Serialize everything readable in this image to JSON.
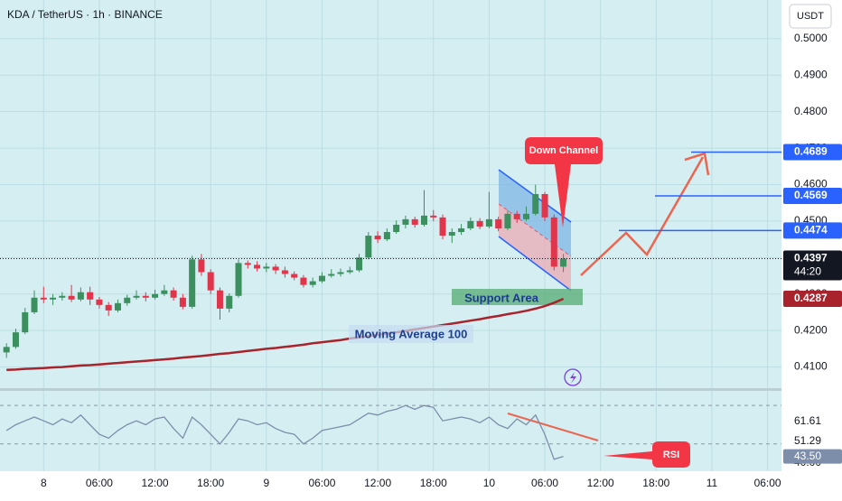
{
  "chart_data": {
    "type": "candlestick",
    "title": "KDA / TetherUS · 1h · BINANCE",
    "currency": "USDT",
    "countdown": "44:20",
    "up_color": "#3c8f5f",
    "down_color": "#e0354a",
    "grid": true,
    "x": [
      0,
      1,
      2,
      3,
      4,
      5,
      6,
      7,
      8,
      9,
      10,
      11,
      12,
      13,
      14,
      15,
      16,
      17,
      18,
      19,
      20,
      21,
      22,
      23,
      24,
      25,
      26,
      27,
      28,
      29,
      30,
      31,
      32,
      33,
      34,
      35,
      36,
      37,
      38,
      39,
      40,
      41,
      42,
      43,
      44,
      45,
      46,
      47,
      48,
      49,
      50,
      51,
      52,
      53,
      54,
      55,
      56,
      57,
      58,
      59,
      60
    ],
    "open": [
      0.414,
      0.4155,
      0.4195,
      0.425,
      0.429,
      0.4285,
      0.429,
      0.4295,
      0.4285,
      0.4305,
      0.4285,
      0.427,
      0.4255,
      0.4275,
      0.429,
      0.4295,
      0.429,
      0.43,
      0.431,
      0.429,
      0.4265,
      0.4395,
      0.436,
      0.431,
      0.426,
      0.4295,
      0.4385,
      0.438,
      0.437,
      0.4375,
      0.4365,
      0.4355,
      0.4345,
      0.4325,
      0.4335,
      0.435,
      0.4355,
      0.436,
      0.4365,
      0.44,
      0.446,
      0.445,
      0.447,
      0.449,
      0.4505,
      0.449,
      0.4515,
      0.451,
      0.446,
      0.447,
      0.448,
      0.45,
      0.4485,
      0.4505,
      0.448,
      0.452,
      0.4505,
      0.452,
      0.4574,
      0.451,
      0.4375
    ],
    "high": [
      0.4165,
      0.4205,
      0.4262,
      0.431,
      0.432,
      0.43,
      0.4305,
      0.4325,
      0.4318,
      0.432,
      0.4292,
      0.4278,
      0.4285,
      0.4298,
      0.431,
      0.4305,
      0.4312,
      0.4325,
      0.4318,
      0.43,
      0.4405,
      0.441,
      0.4368,
      0.4318,
      0.4302,
      0.4395,
      0.4392,
      0.439,
      0.4385,
      0.4382,
      0.4375,
      0.4362,
      0.4352,
      0.4345,
      0.436,
      0.4368,
      0.437,
      0.4375,
      0.441,
      0.447,
      0.4472,
      0.448,
      0.4502,
      0.4515,
      0.4512,
      0.4585,
      0.453,
      0.4518,
      0.448,
      0.4492,
      0.451,
      0.4508,
      0.458,
      0.4512,
      0.453,
      0.4528,
      0.454,
      0.46,
      0.458,
      0.4518,
      0.441
    ],
    "low": [
      0.4125,
      0.415,
      0.419,
      0.4245,
      0.4275,
      0.427,
      0.4282,
      0.4278,
      0.428,
      0.427,
      0.426,
      0.424,
      0.425,
      0.4268,
      0.4285,
      0.428,
      0.4285,
      0.4295,
      0.4282,
      0.4258,
      0.426,
      0.435,
      0.43,
      0.423,
      0.425,
      0.429,
      0.437,
      0.4362,
      0.436,
      0.4355,
      0.4345,
      0.4338,
      0.4318,
      0.4318,
      0.433,
      0.4345,
      0.4348,
      0.4355,
      0.436,
      0.4395,
      0.444,
      0.4445,
      0.4465,
      0.448,
      0.4482,
      0.4485,
      0.45,
      0.445,
      0.444,
      0.4462,
      0.4475,
      0.4478,
      0.448,
      0.4472,
      0.4475,
      0.4495,
      0.45,
      0.4515,
      0.45,
      0.4365,
      0.436
    ],
    "close": [
      0.4155,
      0.4195,
      0.425,
      0.429,
      0.4285,
      0.429,
      0.4295,
      0.4285,
      0.4305,
      0.4285,
      0.427,
      0.4255,
      0.4275,
      0.429,
      0.4295,
      0.429,
      0.43,
      0.431,
      0.429,
      0.4265,
      0.4395,
      0.436,
      0.431,
      0.426,
      0.4295,
      0.4385,
      0.438,
      0.437,
      0.4375,
      0.4365,
      0.4355,
      0.4345,
      0.4325,
      0.4335,
      0.435,
      0.4355,
      0.436,
      0.4365,
      0.44,
      0.446,
      0.445,
      0.447,
      0.449,
      0.4505,
      0.449,
      0.4515,
      0.451,
      0.446,
      0.447,
      0.448,
      0.45,
      0.4485,
      0.4505,
      0.448,
      0.452,
      0.4505,
      0.452,
      0.4574,
      0.451,
      0.4375,
      0.4397
    ],
    "series": [
      {
        "name": "Moving Average 100",
        "color": "#a8232b",
        "values": [
          0.4092,
          0.4093,
          0.4095,
          0.4096,
          0.4097,
          0.4099,
          0.41,
          0.4102,
          0.4104,
          0.4105,
          0.4107,
          0.4109,
          0.4111,
          0.4113,
          0.4115,
          0.4117,
          0.4119,
          0.4121,
          0.4123,
          0.4126,
          0.4128,
          0.413,
          0.4133,
          0.4136,
          0.4138,
          0.4141,
          0.4144,
          0.4147,
          0.415,
          0.4152,
          0.4155,
          0.4158,
          0.4161,
          0.4165,
          0.4168,
          0.4171,
          0.4174,
          0.4178,
          0.4181,
          0.4185,
          0.4188,
          0.4192,
          0.4195,
          0.4199,
          0.4203,
          0.4207,
          0.4211,
          0.4215,
          0.4219,
          0.4223,
          0.4227,
          0.4231,
          0.4236,
          0.424,
          0.4245,
          0.4249,
          0.4254,
          0.426,
          0.4267,
          0.4276,
          0.4287
        ]
      }
    ],
    "xlim": [
      -0.7,
      83.5
    ],
    "xticks": [
      {
        "value": 4,
        "label": "8"
      },
      {
        "value": 10,
        "label": "06:00"
      },
      {
        "value": 16,
        "label": "12:00"
      },
      {
        "value": 22,
        "label": "18:00"
      },
      {
        "value": 28,
        "label": "9"
      },
      {
        "value": 34,
        "label": "06:00"
      },
      {
        "value": 40,
        "label": "12:00"
      },
      {
        "value": 46,
        "label": "18:00"
      },
      {
        "value": 52,
        "label": "10"
      },
      {
        "value": 58,
        "label": "06:00"
      },
      {
        "value": 64,
        "label": "12:00"
      },
      {
        "value": 70,
        "label": "18:00"
      },
      {
        "value": 76,
        "label": "11"
      },
      {
        "value": 82,
        "label": "06:00"
      }
    ],
    "ylim": [
      0.4042,
      0.5106
    ],
    "yticks": [
      {
        "value": 0.41,
        "label": "0.4100"
      },
      {
        "value": 0.42,
        "label": "0.4200"
      },
      {
        "value": 0.43,
        "label": "0.4300"
      },
      {
        "value": 0.44,
        "label": "0.4400"
      },
      {
        "value": 0.45,
        "label": "0.4500"
      },
      {
        "value": 0.46,
        "label": "0.4600"
      },
      {
        "value": 0.47,
        "label": "0.4700"
      },
      {
        "value": 0.48,
        "label": "0.4800"
      },
      {
        "value": 0.49,
        "label": "0.4900"
      },
      {
        "value": 0.5,
        "label": "0.5000"
      }
    ],
    "levels": [
      0.4689,
      0.4569,
      0.4474
    ],
    "level_color": "#2962ff",
    "annotations": {
      "down_channel": "Down Channel",
      "support_area": "Support Area",
      "rsi": "RSI"
    },
    "rsi": {
      "color": "#7d8eab",
      "ylim": [
        35.8,
        77.6
      ],
      "bands": [
        70,
        50
      ],
      "yticks": [
        {
          "value": 40,
          "label": "40.00"
        }
      ],
      "markers": [
        61.61,
        51.29,
        {
          "value": 43.5,
          "label": "43.50"
        }
      ],
      "values": [
        57,
        60,
        62,
        64,
        62,
        60,
        63,
        61,
        65,
        60,
        55,
        53,
        57,
        60,
        62,
        60,
        63,
        64,
        58,
        53,
        64,
        60,
        55,
        50,
        56,
        63,
        62,
        60,
        61,
        58,
        56,
        55,
        50,
        53,
        57,
        58,
        59,
        60,
        63,
        66,
        65,
        67,
        68,
        70,
        68,
        70,
        69,
        62,
        63,
        64,
        63,
        61,
        64,
        60,
        58,
        63,
        60,
        65,
        55,
        42,
        43.5
      ]
    }
  }
}
